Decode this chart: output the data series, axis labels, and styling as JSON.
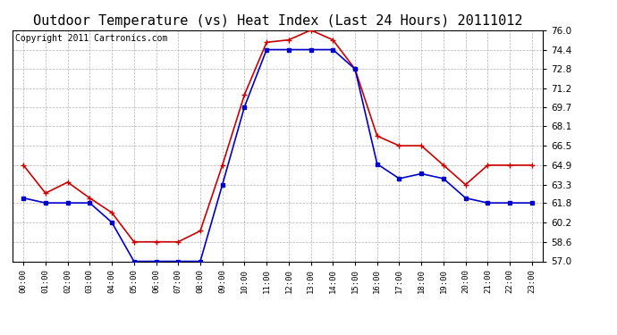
{
  "title": "Outdoor Temperature (vs) Heat Index (Last 24 Hours) 20111012",
  "copyright": "Copyright 2011 Cartronics.com",
  "hours": [
    "00:00",
    "01:00",
    "02:00",
    "03:00",
    "04:00",
    "05:00",
    "06:00",
    "07:00",
    "08:00",
    "09:00",
    "10:00",
    "11:00",
    "12:00",
    "13:00",
    "14:00",
    "15:00",
    "16:00",
    "17:00",
    "18:00",
    "19:00",
    "20:00",
    "21:00",
    "22:00",
    "23:00"
  ],
  "red_line": [
    64.9,
    62.6,
    63.5,
    62.2,
    61.0,
    58.6,
    58.6,
    58.6,
    59.5,
    64.9,
    70.7,
    75.0,
    75.2,
    76.0,
    75.2,
    72.8,
    67.3,
    66.5,
    66.5,
    64.9,
    63.3,
    64.9,
    64.9,
    64.9
  ],
  "blue_line": [
    62.2,
    61.8,
    61.8,
    61.8,
    60.2,
    57.0,
    57.0,
    57.0,
    57.0,
    63.3,
    69.7,
    74.4,
    74.4,
    74.4,
    74.4,
    72.8,
    65.0,
    63.8,
    64.2,
    63.8,
    62.2,
    61.8,
    61.8,
    61.8
  ],
  "ylim": [
    57.0,
    76.0
  ],
  "yticks": [
    57.0,
    58.6,
    60.2,
    61.8,
    63.3,
    64.9,
    66.5,
    68.1,
    69.7,
    71.2,
    72.8,
    74.4,
    76.0
  ],
  "red_color": "#cc0000",
  "blue_color": "#0000cc",
  "bg_color": "#ffffff",
  "grid_color": "#b0b0b0",
  "title_fontsize": 11,
  "copyright_fontsize": 7
}
